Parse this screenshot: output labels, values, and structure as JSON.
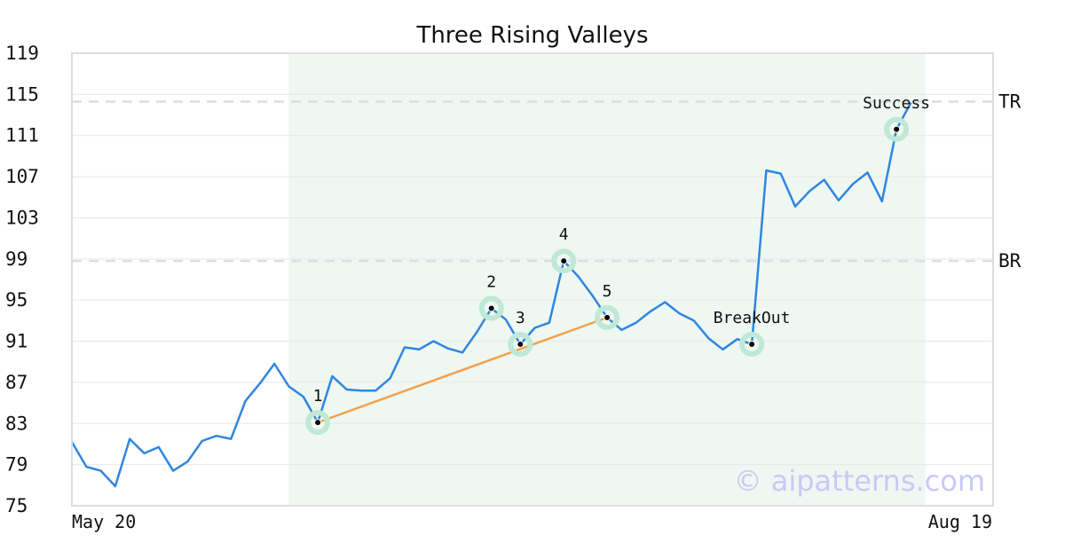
{
  "chart_data": {
    "type": "line",
    "title": "Three Rising Valleys",
    "x_start_label": "May 20",
    "x_end_label": "Aug 19",
    "ylim": [
      75,
      119
    ],
    "yticks": [
      75,
      79,
      83,
      87,
      91,
      95,
      99,
      103,
      107,
      111,
      115,
      119
    ],
    "grid": true,
    "colors": {
      "line": "#2f86e0",
      "trend": "#f5a04a",
      "pattern_region": "#eef7f2",
      "marker_halo": "#bfe9d4",
      "marker": "#000000",
      "level_line": "#dddddd",
      "watermark": "#c9c9f5"
    },
    "series": [
      {
        "values": [
          81.2,
          78.8,
          78.4,
          76.9,
          81.5,
          80.1,
          80.7,
          78.4,
          79.3,
          81.3,
          81.8,
          81.5,
          85.2,
          86.9,
          88.8,
          86.6,
          85.6,
          83.1,
          87.6,
          86.3,
          86.2,
          86.2,
          87.4,
          90.4,
          90.2,
          91.0,
          90.3,
          89.9,
          91.9,
          94.2,
          93.1,
          90.7,
          92.3,
          92.8,
          98.8,
          97.3,
          95.4,
          93.3,
          92.1,
          92.8,
          93.9,
          94.8,
          93.7,
          93.0,
          91.3,
          90.2,
          91.2,
          90.7,
          107.6,
          107.3,
          104.1,
          105.6,
          106.7,
          104.7,
          106.3,
          107.4,
          104.6,
          111.6,
          114.2
        ]
      }
    ],
    "pattern_region": {
      "start_index": 15,
      "end_index": 59
    },
    "levels": [
      {
        "label": "TR",
        "value": 114.3
      },
      {
        "label": "BR",
        "value": 98.8
      }
    ],
    "trendline": {
      "from_index": 17,
      "to_index": 37
    },
    "annotations": [
      {
        "label": "1",
        "index": 17,
        "value": 83.1,
        "position": "above"
      },
      {
        "label": "2",
        "index": 29,
        "value": 94.2,
        "position": "above"
      },
      {
        "label": "3",
        "index": 31,
        "value": 90.7,
        "position": "above"
      },
      {
        "label": "4",
        "index": 34,
        "value": 98.8,
        "position": "above"
      },
      {
        "label": "5",
        "index": 37,
        "value": 93.3,
        "position": "above"
      },
      {
        "label": "BreakOut",
        "index": 47,
        "value": 90.7,
        "position": "above"
      },
      {
        "label": "Success",
        "index": 57,
        "value": 111.6,
        "position": "above"
      }
    ],
    "watermark": "© aipatterns.com"
  }
}
